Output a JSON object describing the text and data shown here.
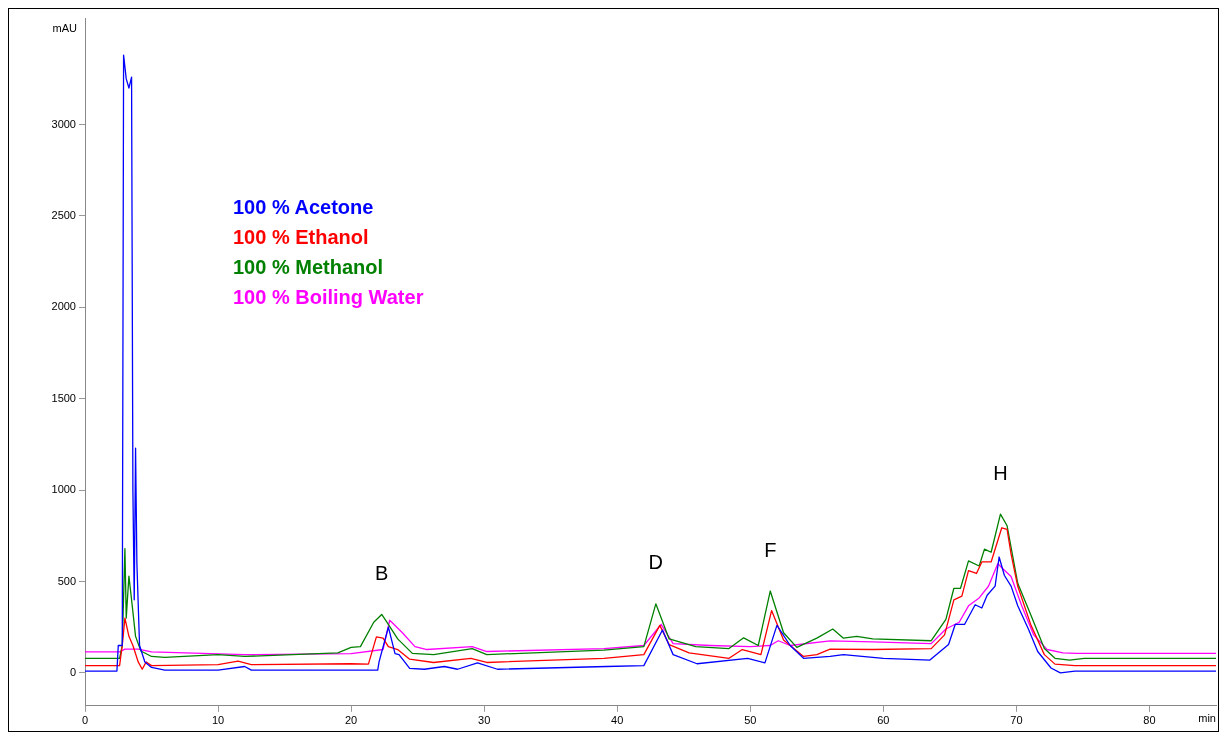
{
  "chart_data": {
    "type": "line",
    "xlabel": "min",
    "ylabel": "mAU",
    "xlim": [
      0,
      85
    ],
    "ylim": [
      -180,
      3580
    ],
    "xticks": [
      0,
      10,
      20,
      30,
      40,
      50,
      60,
      70,
      80
    ],
    "yticks": [
      0,
      500,
      1000,
      1500,
      2000,
      2500,
      3000
    ],
    "grid": false,
    "legend": "top left",
    "marker": "none",
    "line_style": "solid",
    "annotations": [
      {
        "text": "B",
        "x": 22.3,
        "y": 320
      },
      {
        "text": "D",
        "x": 42.9,
        "y": 378
      },
      {
        "text": "F",
        "x": 51.5,
        "y": 448
      },
      {
        "text": "H",
        "x": 68.8,
        "y": 869
      }
    ],
    "series": [
      {
        "name": "100 % Acetone",
        "color": "#0000ff",
        "x": [
          0,
          2.4,
          2.5,
          2.8,
          2.9,
          3.1,
          3.3,
          3.5,
          3.6,
          3.7,
          3.8,
          3.9,
          4.1,
          4.5,
          5,
          6,
          10,
          12,
          12.5,
          22,
          22.1,
          22.8,
          23.3,
          23.6,
          24.4,
          25.5,
          27,
          28,
          29.5,
          31,
          39.2,
          42,
          43.4,
          44.2,
          46,
          49.8,
          51.1,
          52,
          53,
          54,
          56,
          57,
          60,
          63.5,
          64.9,
          65.4,
          66.1,
          66.9,
          67.4,
          67.8,
          68.4,
          68.7,
          69.1,
          69.6,
          70.1,
          70.9,
          71.6,
          72.6,
          73.3,
          74.4,
          85
        ],
        "values": [
          10,
          10,
          150,
          150,
          3380,
          3250,
          3200,
          3260,
          1000,
          400,
          1230,
          600,
          150,
          60,
          30,
          15,
          15,
          35,
          15,
          15,
          60,
          250,
          105,
          100,
          25,
          20,
          35,
          20,
          55,
          20,
          35,
          40,
          235,
          100,
          50,
          80,
          55,
          260,
          150,
          80,
          90,
          100,
          80,
          70,
          155,
          265,
          265,
          373,
          355,
          425,
          475,
          634,
          533,
          475,
          367,
          240,
          117,
          27,
          0,
          10,
          10
        ]
      },
      {
        "name": "100 % Ethanol",
        "color": "#ff0000",
        "x": [
          0,
          2.6,
          2.8,
          3.0,
          3.3,
          3.6,
          4,
          4.3,
          4.6,
          5,
          10,
          11.5,
          12.5,
          20,
          21.3,
          21.9,
          22.4,
          22.8,
          23.5,
          24.4,
          26.2,
          29,
          30.2,
          39,
          42,
          43.2,
          43.9,
          45.4,
          48.4,
          49.4,
          50.8,
          51.6,
          52.5,
          54,
          55,
          56,
          59.2,
          63.6,
          64.6,
          65.3,
          65.9,
          66.4,
          67.0,
          67.4,
          68.1,
          68.9,
          69.3,
          69.6,
          70.1,
          71.1,
          72.1,
          72.9,
          74.4,
          85
        ],
        "values": [
          40,
          40,
          150,
          300,
          200,
          150,
          60,
          20,
          60,
          40,
          45,
          65,
          45,
          50,
          48,
          197,
          190,
          144,
          128,
          75,
          57,
          80,
          57,
          80,
          100,
          260,
          155,
          110,
          80,
          128,
          100,
          341,
          180,
          90,
          100,
          130,
          128,
          133,
          208,
          400,
          420,
          560,
          544,
          607,
          607,
          794,
          785,
          650,
          474,
          260,
          100,
          48,
          40,
          40
        ]
      },
      {
        "name": "100 % Methanol",
        "color": "#008000",
        "x": [
          0,
          2.6,
          2.8,
          3.0,
          3.1,
          3.3,
          3.5,
          3.8,
          4.2,
          5,
          6,
          10,
          12,
          19,
          20,
          20.7,
          21.7,
          22.3,
          22.7,
          23.5,
          24.6,
          26.2,
          29.1,
          30.2,
          39,
          42,
          42.9,
          43.9,
          45.9,
          48.4,
          49.5,
          50.6,
          51.5,
          52.5,
          53.5,
          55,
          56.2,
          57,
          58,
          59.2,
          63.6,
          64.7,
          65.3,
          65.8,
          66.4,
          67.2,
          67.6,
          68.1,
          68.8,
          69.3,
          69.6,
          70.1,
          71.1,
          72.1,
          72.9,
          74,
          75.1,
          85
        ],
        "values": [
          80,
          80,
          150,
          680,
          300,
          530,
          400,
          200,
          120,
          90,
          85,
          100,
          90,
          110,
          140,
          144,
          277,
          320,
          277,
          186,
          107,
          100,
          133,
          100,
          125,
          144,
          378,
          186,
          144,
          133,
          192,
          150,
          448,
          220,
          140,
          190,
          240,
          190,
          200,
          186,
          176,
          293,
          463,
          463,
          613,
          585,
          677,
          660,
          869,
          805,
          687,
          490,
          314,
          133,
          80,
          70,
          80,
          80
        ]
      },
      {
        "name": "100 % Boiling Water",
        "color": "#ff00ff",
        "x": [
          0,
          2.6,
          3,
          4,
          5,
          12,
          20,
          22.4,
          22.9,
          23.8,
          24.8,
          25.7,
          29.1,
          30.2,
          39,
          42,
          43.3,
          44.2,
          47,
          50,
          51.5,
          52.1,
          53,
          56,
          59.2,
          63.6,
          64.7,
          65.7,
          66.4,
          67.2,
          67.9,
          68.6,
          69.1,
          69.6,
          70.4,
          71.3,
          72.3,
          73.5,
          74.5,
          85
        ],
        "values": [
          115,
          115,
          130,
          130,
          115,
          100,
          105,
          128,
          288,
          224,
          144,
          128,
          144,
          117,
          133,
          150,
          266,
          160,
          150,
          144,
          150,
          176,
          150,
          175,
          170,
          160,
          240,
          277,
          367,
          410,
          474,
          597,
          562,
          527,
          367,
          208,
          128,
          110,
          107,
          107
        ]
      }
    ]
  }
}
